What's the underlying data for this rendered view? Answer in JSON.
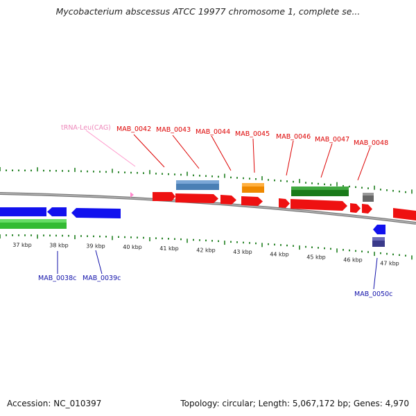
{
  "title": "Mycobacterium abscessus ATCC 19977 chromosome 1, complete se...",
  "accession": "Accession: NC_010397",
  "topology": "Topology: circular; Length: 5,067,172 bp; Genes: 4,970",
  "colors": {
    "forward_cds": "#ee1111",
    "reverse_cds": "#1111ee",
    "rna": "#ff88cc",
    "backbone": "#888888",
    "ticks": "#117711",
    "label_fwd": "#dd0000",
    "label_rev": "#1111aa",
    "label_rna": "#ee88bb"
  },
  "scale_labels": [
    "37 kbp",
    "38 kbp",
    "39 kbp",
    "40 kbp",
    "41 kbp",
    "42 kbp",
    "43 kbp",
    "44 kbp",
    "45 kbp",
    "46 kbp",
    "47 kbp"
  ],
  "labels_top": [
    {
      "text": "tRNA-Leu(CAG)",
      "kind": "rna"
    },
    {
      "text": "MAB_0042",
      "kind": "fwd"
    },
    {
      "text": "MAB_0043",
      "kind": "fwd"
    },
    {
      "text": "MAB_0044",
      "kind": "fwd"
    },
    {
      "text": "MAB_0045",
      "kind": "fwd"
    },
    {
      "text": "MAB_0046",
      "kind": "fwd"
    },
    {
      "text": "MAB_0047",
      "kind": "fwd"
    },
    {
      "text": "MAB_0048",
      "kind": "fwd"
    }
  ],
  "labels_bottom": [
    {
      "text": "MAB_0038c",
      "kind": "rev"
    },
    {
      "text": "MAB_0039c",
      "kind": "rev"
    },
    {
      "text": "MAB_0050c",
      "kind": "rev"
    }
  ]
}
